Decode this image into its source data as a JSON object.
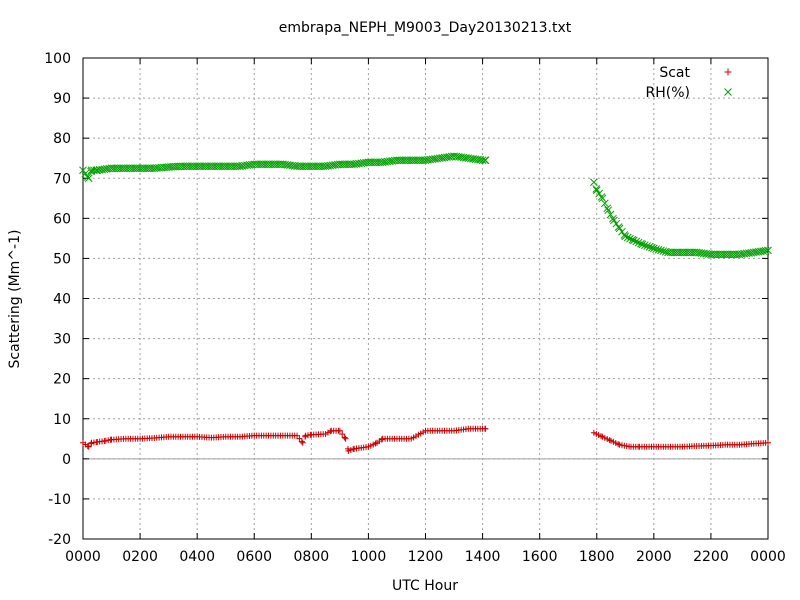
{
  "chart_data": {
    "type": "scatter",
    "title": "embrapa_NEPH_M9003_Day20130213.txt",
    "xlabel": "UTC Hour",
    "ylabel": "Scattering (Mm^-1)",
    "xlim": [
      0,
      24
    ],
    "ylim": [
      -20,
      100
    ],
    "x_ticks": [
      "0000",
      "0200",
      "0400",
      "0600",
      "0800",
      "1000",
      "1200",
      "1400",
      "1600",
      "1800",
      "2000",
      "2200",
      "0000"
    ],
    "y_ticks": [
      "-20",
      "-10",
      "0",
      "10",
      "20",
      "30",
      "40",
      "50",
      "60",
      "70",
      "80",
      "90",
      "100"
    ],
    "grid": true,
    "legend_position": "top-right",
    "colors": {
      "scat": "#cc0000",
      "rh": "#00a000",
      "grid": "#a0a0a0",
      "zero_line": "#a0a0a0"
    },
    "series": [
      {
        "name": "Scat",
        "marker": "plus",
        "x": [
          0.0,
          0.2,
          0.3,
          0.5,
          0.8,
          1.0,
          1.5,
          2.0,
          2.5,
          3.0,
          3.5,
          4.0,
          4.5,
          5.0,
          5.5,
          6.0,
          6.5,
          7.0,
          7.5,
          7.7,
          7.8,
          8.0,
          8.5,
          8.7,
          9.0,
          9.2,
          9.3,
          9.5,
          10.0,
          10.3,
          10.5,
          11.0,
          11.5,
          12.0,
          12.5,
          13.0,
          13.5,
          14.0,
          14.1,
          17.9,
          18.2,
          18.5,
          18.8,
          19.2,
          19.5,
          20.0,
          20.5,
          21.0,
          21.5,
          22.0,
          22.5,
          23.0,
          23.5,
          24.0
        ],
        "y": [
          4,
          3,
          4,
          4.2,
          4.5,
          4.8,
          5,
          5,
          5.2,
          5.5,
          5.5,
          5.5,
          5.3,
          5.5,
          5.5,
          5.8,
          5.8,
          5.8,
          5.8,
          4,
          5.8,
          6,
          6.2,
          7,
          7,
          5,
          2,
          2.5,
          3,
          4,
          5,
          5,
          5,
          7,
          7,
          7,
          7.5,
          7.5,
          7.5,
          6.5,
          5.5,
          4.5,
          3.5,
          3,
          3,
          3,
          3,
          3,
          3.2,
          3.3,
          3.5,
          3.5,
          3.8,
          4
        ]
      },
      {
        "name": "RH(%)",
        "marker": "cross",
        "x": [
          0.0,
          0.2,
          0.3,
          0.5,
          1.0,
          1.5,
          2.0,
          2.5,
          3.0,
          3.5,
          4.0,
          4.5,
          5.0,
          5.5,
          6.0,
          6.5,
          7.0,
          7.5,
          8.0,
          8.5,
          9.0,
          9.5,
          10.0,
          10.5,
          11.0,
          11.5,
          12.0,
          12.5,
          13.0,
          13.5,
          14.0,
          14.1,
          17.9,
          18.0,
          18.2,
          18.4,
          18.6,
          18.8,
          19.0,
          19.3,
          19.6,
          20.0,
          20.5,
          21.0,
          21.5,
          22.0,
          22.5,
          23.0,
          23.5,
          24.0
        ],
        "y": [
          72,
          70,
          72,
          72,
          72.5,
          72.5,
          72.5,
          72.5,
          72.8,
          73,
          73,
          73,
          73,
          73,
          73.5,
          73.5,
          73.5,
          73,
          73,
          73,
          73.5,
          73.5,
          74,
          74,
          74.5,
          74.5,
          74.5,
          75,
          75.5,
          75,
          74.5,
          74.5,
          69,
          67,
          65,
          62,
          59.5,
          57.5,
          55.5,
          54.5,
          53.5,
          52.5,
          51.5,
          51.5,
          51.5,
          51,
          51,
          51,
          51.5,
          52
        ]
      }
    ]
  }
}
